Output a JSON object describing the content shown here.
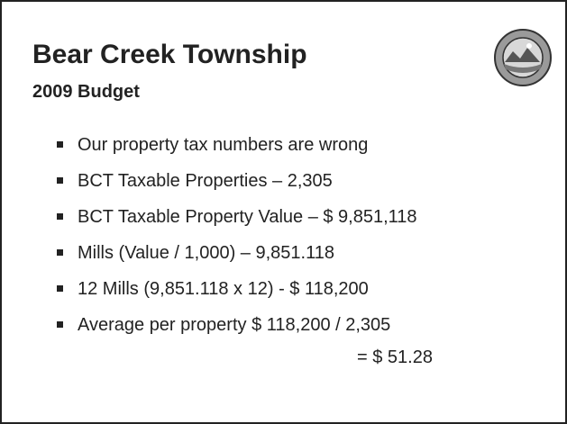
{
  "header": {
    "title": "Bear Creek Township",
    "subtitle": "2009 Budget"
  },
  "bullets": [
    "Our property tax numbers are wrong",
    "BCT Taxable Properties – 2,305",
    "BCT Taxable Property Value – $ 9,851,118",
    "Mills (Value / 1,000) – 9,851.118",
    "12 Mills (9,851.118 x 12) - $ 118,200",
    "Average per property $ 118,200 / 2,305"
  ],
  "continuation": "= $ 51.28"
}
